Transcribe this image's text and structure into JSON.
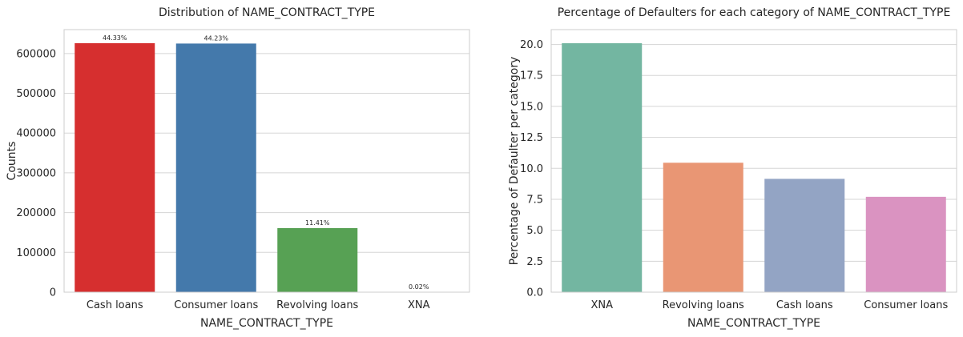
{
  "chart_data": [
    {
      "type": "bar",
      "title": "Distribution of NAME_CONTRACT_TYPE",
      "xlabel": "NAME_CONTRACT_TYPE",
      "ylabel": "Counts",
      "categories": [
        "Cash loans",
        "Consumer loans",
        "Revolving loans",
        "XNA"
      ],
      "values": [
        626000,
        625000,
        161000,
        300
      ],
      "data_labels": [
        "44.33%",
        "44.23%",
        "11.41%",
        "0.02%"
      ],
      "colors": [
        "#D62F2F",
        "#4479AB",
        "#57A154",
        "#8F5DA0"
      ],
      "ylim": [
        0,
        660000
      ],
      "yticks": [
        0,
        100000,
        200000,
        300000,
        400000,
        500000,
        600000
      ],
      "ytick_labels": [
        "0",
        "100000",
        "200000",
        "300000",
        "400000",
        "500000",
        "600000"
      ],
      "grid": "horizontal"
    },
    {
      "type": "bar",
      "title": "Percentage of Defaulters for each category of NAME_CONTRACT_TYPE",
      "xlabel": "NAME_CONTRACT_TYPE",
      "ylabel": "Percentage of Defaulter per category",
      "categories": [
        "XNA",
        "Revolving loans",
        "Cash loans",
        "Consumer loans"
      ],
      "values": [
        20.1,
        10.45,
        9.15,
        7.7
      ],
      "colors": [
        "#73B6A1",
        "#E99674",
        "#93A4C4",
        "#DA93C1"
      ],
      "ylim": [
        0,
        21.2
      ],
      "yticks": [
        0,
        2.5,
        5,
        7.5,
        10,
        12.5,
        15,
        17.5,
        20
      ],
      "ytick_labels": [
        "0.0",
        "2.5",
        "5.0",
        "7.5",
        "10.0",
        "12.5",
        "15.0",
        "17.5",
        "20.0"
      ],
      "grid": "horizontal"
    }
  ]
}
